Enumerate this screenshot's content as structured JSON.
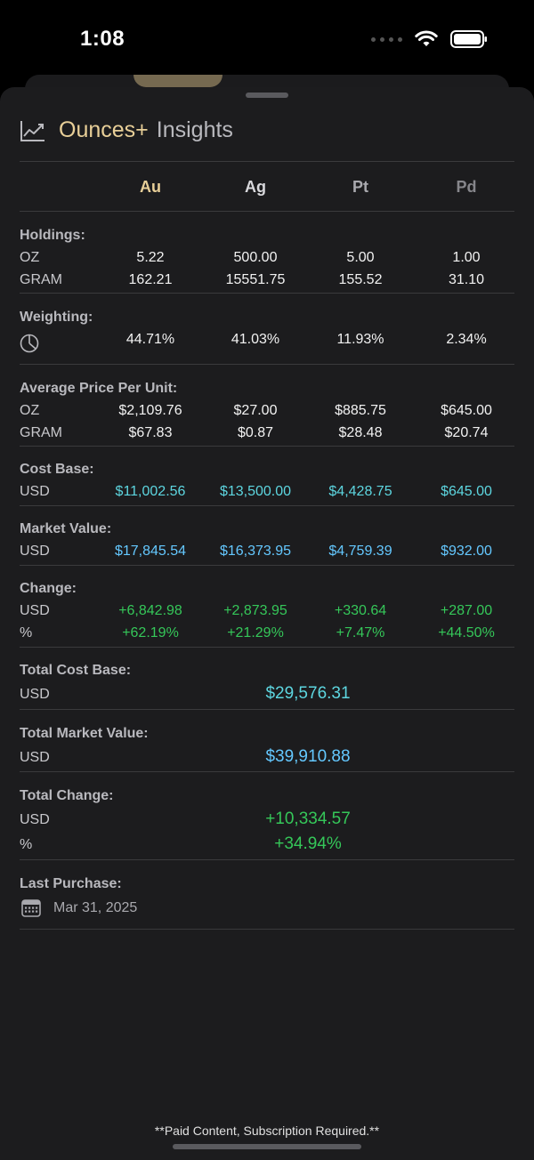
{
  "status": {
    "time": "1:08"
  },
  "header": {
    "app_name": "Ounces+",
    "section": "Insights"
  },
  "columns": [
    "Au",
    "Ag",
    "Pt",
    "Pd"
  ],
  "holdings": {
    "label": "Holdings:",
    "oz_label": "OZ",
    "gram_label": "GRAM",
    "oz": [
      "5.22",
      "500.00",
      "5.00",
      "1.00"
    ],
    "gram": [
      "162.21",
      "15551.75",
      "155.52",
      "31.10"
    ]
  },
  "weighting": {
    "label": "Weighting:",
    "values": [
      "44.71%",
      "41.03%",
      "11.93%",
      "2.34%"
    ]
  },
  "avg_price": {
    "label": "Average Price Per Unit:",
    "oz_label": "OZ",
    "gram_label": "GRAM",
    "oz": [
      "$2,109.76",
      "$27.00",
      "$885.75",
      "$645.00"
    ],
    "gram": [
      "$67.83",
      "$0.87",
      "$28.48",
      "$20.74"
    ]
  },
  "cost_base": {
    "label": "Cost Base:",
    "unit": "USD",
    "values": [
      "$11,002.56",
      "$13,500.00",
      "$4,428.75",
      "$645.00"
    ]
  },
  "market_value": {
    "label": "Market Value:",
    "unit": "USD",
    "values": [
      "$17,845.54",
      "$16,373.95",
      "$4,759.39",
      "$932.00"
    ]
  },
  "change": {
    "label": "Change:",
    "usd_label": "USD",
    "pct_label": "%",
    "usd": [
      "+6,842.98",
      "+2,873.95",
      "+330.64",
      "+287.00"
    ],
    "pct": [
      "+62.19%",
      "+21.29%",
      "+7.47%",
      "+44.50%"
    ]
  },
  "total_cost_base": {
    "label": "Total Cost Base:",
    "unit": "USD",
    "value": "$29,576.31"
  },
  "total_market_value": {
    "label": "Total Market Value:",
    "unit": "USD",
    "value": "$39,910.88"
  },
  "total_change": {
    "label": "Total Change:",
    "usd_label": "USD",
    "pct_label": "%",
    "usd": "+10,334.57",
    "pct": "+34.94%"
  },
  "last_purchase": {
    "label": "Last Purchase:",
    "date": "Mar 31, 2025"
  },
  "footer": {
    "note": "**Paid Content, Subscription Required.**"
  },
  "colors": {
    "gold": "#e8cf98",
    "blue": "#64c8ff",
    "teal": "#5dd6e0",
    "green": "#35c759",
    "sheet": "#1c1c1e"
  }
}
